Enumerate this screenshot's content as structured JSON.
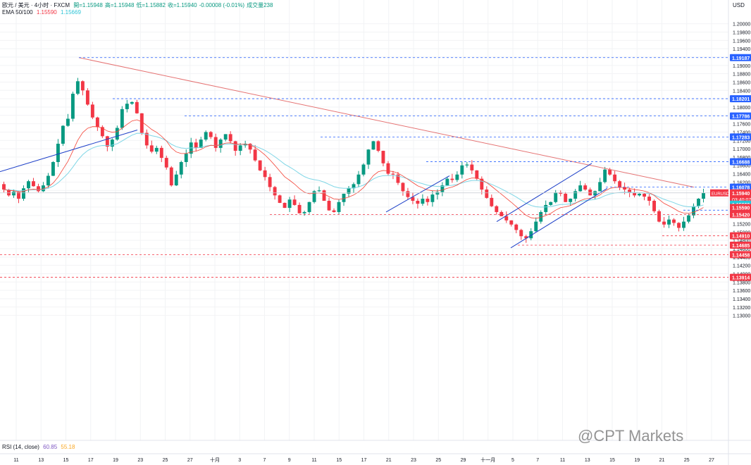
{
  "header": {
    "symbol_line": "欧元 / 美元 · 4小时 · FXCM",
    "ohlc": [
      {
        "label": "開",
        "value": "=1.15948"
      },
      {
        "label": "高",
        "value": "=1.15948"
      },
      {
        "label": "低",
        "value": "=1.15882"
      },
      {
        "label": "收",
        "value": "=1.15940"
      },
      {
        "label": "",
        "value": "-0.00008 (-0.01%)"
      },
      {
        "label": "成交量",
        "value": "238"
      }
    ],
    "ema_label": "EMA 50/100",
    "ema50": "1.15590",
    "ema100": "1.15669",
    "rsi_label": "RSI (14, close)",
    "rsi_value": "60.85",
    "rsi_ma": "55.18"
  },
  "currency": "USD",
  "watermark": "@CPT Markets",
  "colors": {
    "up": "#089981",
    "down": "#f23645",
    "ema50": "#f44336",
    "ema100": "#7fd6e6",
    "trend_red": "#e57373",
    "trend_blue": "#1e40c8",
    "level_blue": "#2962ff",
    "level_red": "#f23645"
  },
  "chart_data": {
    "type": "candlestick",
    "symbol": "EURUSD",
    "timeframe": "4h",
    "y_axis": {
      "range": [
        1.1,
        1.2057
      ],
      "ticks": [
        "1.20000",
        "1.19800",
        "1.19600",
        "1.19400",
        "1.19200",
        "1.19000",
        "1.18800",
        "1.18600",
        "1.18400",
        "1.18200",
        "1.18000",
        "1.17800",
        "1.17600",
        "1.17400",
        "1.17200",
        "1.17000",
        "1.16800",
        "1.16600",
        "1.16400",
        "1.16200",
        "1.16000",
        "1.15800",
        "1.15600",
        "1.15400",
        "1.15200",
        "1.15000",
        "1.14800",
        "1.14600",
        "1.14400",
        "1.14200",
        "1.14000",
        "1.13800",
        "1.13600",
        "1.13400",
        "1.13200",
        "1.13000"
      ]
    },
    "x_axis": {
      "ticks": [
        "11",
        "13",
        "15",
        "17",
        "19",
        "23",
        "25",
        "27",
        "十月",
        "3",
        "7",
        "9",
        "11",
        "15",
        "17",
        "21",
        "23",
        "25",
        "29",
        "十一月",
        "5",
        "7",
        "11",
        "13",
        "15",
        "19",
        "21",
        "25",
        "27"
      ]
    },
    "price_levels": [
      {
        "value": 1.19187,
        "label": "1.19187",
        "kind": "resistance"
      },
      {
        "value": 1.18201,
        "label": "1.18201",
        "kind": "resistance"
      },
      {
        "value": 1.17786,
        "label": "1.17786",
        "kind": "resistance"
      },
      {
        "value": 1.17283,
        "label": "1.17283",
        "kind": "resistance"
      },
      {
        "value": 1.16688,
        "label": "1.16688",
        "kind": "resistance"
      },
      {
        "value": 1.16078,
        "label": "1.16078",
        "kind": "resistance"
      },
      {
        "value": 1.15525,
        "label": "1.15525",
        "kind": "resistance"
      },
      {
        "value": 1.1542,
        "label": "1.15420",
        "kind": "support"
      },
      {
        "value": 1.1491,
        "label": "1.14910",
        "kind": "support"
      },
      {
        "value": 1.14685,
        "label": "1.14685",
        "kind": "support"
      },
      {
        "value": 1.14458,
        "label": "1.14458",
        "kind": "support"
      },
      {
        "value": 1.13914,
        "label": "1.13914",
        "kind": "support"
      }
    ],
    "current_price": {
      "label": "EURUSD",
      "value": "1.15940",
      "countdown": "03:40:07"
    },
    "ema_tags": [
      {
        "value": "1.15669"
      },
      {
        "value": "1.15590"
      }
    ],
    "path": [
      1.1615,
      1.1602,
      1.1588,
      1.1597,
      1.158,
      1.1605,
      1.1622,
      1.161,
      1.1598,
      1.1612,
      1.1635,
      1.1668,
      1.1712,
      1.1755,
      1.1772,
      1.1832,
      1.1862,
      1.184,
      1.1806,
      1.1775,
      1.1752,
      1.173,
      1.1705,
      1.1722,
      1.175,
      1.1795,
      1.1808,
      1.1812,
      1.1785,
      1.1738,
      1.1708,
      1.1693,
      1.1702,
      1.1678,
      1.1655,
      1.1612,
      1.1638,
      1.1668,
      1.1688,
      1.1715,
      1.1702,
      1.1722,
      1.174,
      1.1728,
      1.1702,
      1.1722,
      1.1735,
      1.1718,
      1.1695,
      1.1708,
      1.1712,
      1.1698,
      1.1672,
      1.1648,
      1.1632,
      1.1608,
      1.1588,
      1.157,
      1.1558,
      1.1578,
      1.1565,
      1.1545,
      1.1548,
      1.1572,
      1.1598,
      1.16,
      1.1575,
      1.1552,
      1.1548,
      1.1572,
      1.1592,
      1.1605,
      1.1615,
      1.1638,
      1.1662,
      1.1698,
      1.1718,
      1.1695,
      1.1665,
      1.164,
      1.1638,
      1.1618,
      1.1598,
      1.1584,
      1.1575,
      1.1568,
      1.158,
      1.1572,
      1.159,
      1.1596,
      1.1612,
      1.1628,
      1.1625,
      1.1638,
      1.166,
      1.1662,
      1.1648,
      1.1628,
      1.1602,
      1.1582,
      1.1562,
      1.1548,
      1.1538,
      1.1528,
      1.1518,
      1.1505,
      1.149,
      1.1485,
      1.1502,
      1.1525,
      1.1548,
      1.1565,
      1.1572,
      1.1595,
      1.1592,
      1.1572,
      1.158,
      1.1598,
      1.1612,
      1.1602,
      1.1588,
      1.1598,
      1.162,
      1.165,
      1.1638,
      1.1622,
      1.1608,
      1.1602,
      1.1595,
      1.1588,
      1.1592,
      1.1585,
      1.1575,
      1.155,
      1.1525,
      1.1518,
      1.153,
      1.1522,
      1.151,
      1.1525,
      1.154,
      1.1562,
      1.158,
      1.1594
    ]
  }
}
